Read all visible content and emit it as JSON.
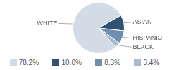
{
  "chart_data": {
    "type": "pie",
    "categories": [
      "WHITE",
      "ASIAN",
      "HISPANIC",
      "BLACK"
    ],
    "values": [
      78.2,
      10.0,
      8.3,
      3.4
    ],
    "value_labels": [
      "78.2%",
      "10.0%",
      "8.3%",
      "3.4%"
    ],
    "colors": [
      "#d3dbe6",
      "#2f5272",
      "#6f8fae",
      "#a9bacd"
    ]
  }
}
